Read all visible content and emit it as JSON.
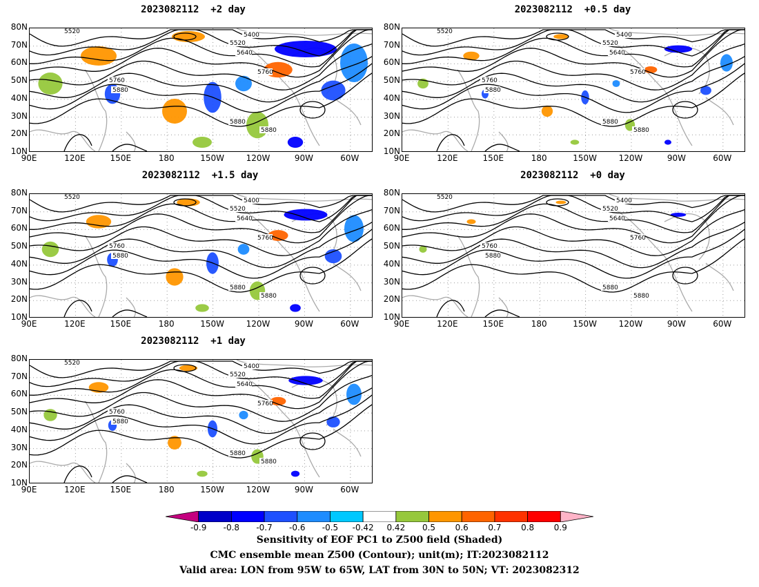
{
  "panels": [
    {
      "title": "2023082112  +2 day",
      "intensity": 1.0
    },
    {
      "title": "2023082112  +0.5 day",
      "intensity": 0.45
    },
    {
      "title": "2023082112  +1.5 day",
      "intensity": 0.7
    },
    {
      "title": "2023082112  +0 day",
      "intensity": 0.15
    },
    {
      "title": "2023082112  +1 day",
      "intensity": 0.55
    }
  ],
  "lat_labels": [
    "80N",
    "70N",
    "60N",
    "50N",
    "40N",
    "30N",
    "20N",
    "10N"
  ],
  "lon_labels": [
    "90E",
    "120E",
    "150E",
    "180",
    "150W",
    "120W",
    "90W",
    "60W"
  ],
  "contour_labels": [
    "5400",
    "5520",
    "5640",
    "5760",
    "5880"
  ],
  "colorbar": {
    "labels": [
      "-0.9",
      "-0.8",
      "-0.7",
      "-0.6",
      "-0.5",
      "-0.42",
      "0.42",
      "0.5",
      "0.6",
      "0.7",
      "0.8",
      "0.9"
    ],
    "colors": [
      "#c4007f",
      "#0000c8",
      "#0000ff",
      "#1e50ff",
      "#1e8cff",
      "#00c8ff",
      "#ffffff",
      "#96c83c",
      "#ff9600",
      "#ff6400",
      "#ff3200",
      "#ff0000",
      "#ffb4c8"
    ]
  },
  "captions": {
    "line1": "Sensitivity of EOF PC1 to Z500 field (Shaded)",
    "line2": "CMC ensemble mean Z500 (Contour); unit(m); IT:2023082112",
    "line3": "Valid area: LON from 95W to 65W, LAT from 30N to 50N; VT: 2023082312"
  }
}
